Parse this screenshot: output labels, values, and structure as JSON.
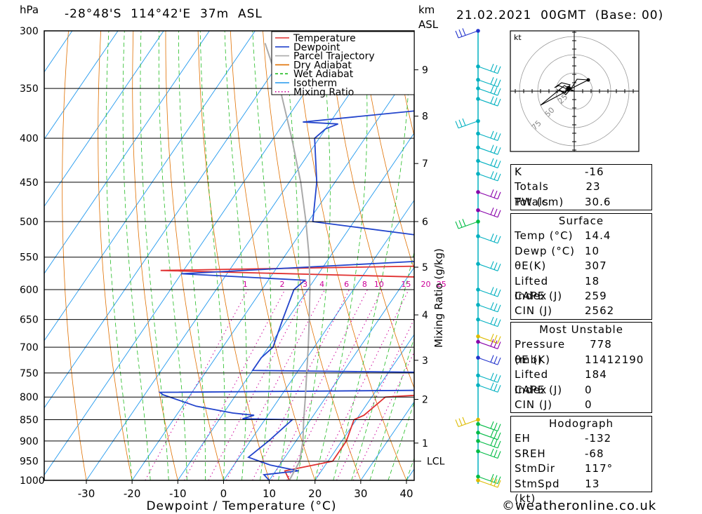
{
  "header": {
    "hpa_label": "hPa",
    "location": "-28°48'S  114°42'E  37m  ASL",
    "km_label": "km",
    "asl_label": "ASL",
    "run": "21.02.2021  00GMT  (Base: 00)"
  },
  "legend": [
    {
      "label": "Temperature",
      "color": "#e03030",
      "style": "solid"
    },
    {
      "label": "Dewpoint",
      "color": "#2244cc",
      "style": "solid"
    },
    {
      "label": "Parcel Trajectory",
      "color": "#aaaaaa",
      "style": "solid"
    },
    {
      "label": "Dry Adiabat",
      "color": "#e07000",
      "style": "solid"
    },
    {
      "label": "Wet Adiabat",
      "color": "#22bb22",
      "style": "dashed"
    },
    {
      "label": "Isotherm",
      "color": "#2299ee",
      "style": "solid"
    },
    {
      "label": "Mixing Ratio",
      "color": "#cc0099",
      "style": "dotted"
    }
  ],
  "chart_data": {
    "type": "line",
    "title": "",
    "xlabel": "Dewpoint / Temperature (°C)",
    "ylabel": "hPa",
    "secondary_ylabel": "km ASL",
    "mixing_ratio_label": "Mixing Ratio (g/kg)",
    "x_ticks": [
      -30,
      -20,
      -10,
      0,
      10,
      20,
      30,
      40
    ],
    "pressure_ticks": [
      300,
      350,
      400,
      450,
      500,
      550,
      600,
      650,
      700,
      750,
      800,
      850,
      900,
      950,
      1000
    ],
    "km_ticks": [
      {
        "label": "9",
        "p": 333
      },
      {
        "label": "8",
        "p": 377
      },
      {
        "label": "7",
        "p": 428
      },
      {
        "label": "6",
        "p": 500
      },
      {
        "label": "5",
        "p": 565
      },
      {
        "label": "4",
        "p": 642
      },
      {
        "label": "3",
        "p": 725
      },
      {
        "label": "2",
        "p": 805
      },
      {
        "label": "1",
        "p": 905
      }
    ],
    "lcl": {
      "label": "LCL",
      "p": 950
    },
    "mixing_ratio_lines": [
      "1",
      "2",
      "3",
      "4",
      "6",
      "8",
      "10",
      "15",
      "20",
      "25"
    ],
    "xlim": [
      -40,
      40
    ],
    "plim": [
      1000,
      300
    ],
    "skew": "skew-T log-p",
    "series": [
      {
        "name": "Temperature",
        "color": "#e03030",
        "points": [
          [
            1000,
            14.4
          ],
          [
            975,
            12
          ],
          [
            950,
            21
          ],
          [
            900,
            21
          ],
          [
            850,
            19.5
          ],
          [
            840,
            21
          ],
          [
            800,
            23
          ],
          [
            790,
            40
          ],
          [
            745,
            40
          ],
          [
            735,
            25
          ],
          [
            700,
            25
          ],
          [
            650,
            23
          ],
          [
            610,
            22
          ],
          [
            600,
            22.5
          ],
          [
            585,
            40
          ],
          [
            570,
            -45
          ],
          [
            560,
            40
          ],
          [
            540,
            40
          ],
          [
            500,
            17
          ],
          [
            450,
            16
          ],
          [
            400,
            12
          ],
          [
            385,
            10
          ],
          [
            383,
            40
          ],
          [
            380,
            40
          ],
          [
            360,
            40
          ],
          [
            340,
            40
          ]
        ]
      },
      {
        "name": "Dewpoint",
        "color": "#2244cc",
        "points": [
          [
            1000,
            10
          ],
          [
            985,
            8
          ],
          [
            975,
            15
          ],
          [
            960,
            8
          ],
          [
            940,
            2
          ],
          [
            900,
            4
          ],
          [
            850,
            6
          ],
          [
            848,
            -5
          ],
          [
            840,
            -3
          ],
          [
            835,
            -8
          ],
          [
            820,
            -17
          ],
          [
            795,
            -26
          ],
          [
            790,
            -27
          ],
          [
            785,
            40
          ],
          [
            760,
            40
          ],
          [
            750,
            40
          ],
          [
            745,
            -10
          ],
          [
            720,
            -10
          ],
          [
            700,
            -9
          ],
          [
            650,
            -11
          ],
          [
            600,
            -13
          ],
          [
            585,
            -12
          ],
          [
            575,
            -40
          ],
          [
            545,
            40
          ],
          [
            500,
            -19
          ],
          [
            450,
            -24
          ],
          [
            400,
            -31
          ],
          [
            390,
            -30
          ],
          [
            385,
            -28
          ],
          [
            383,
            -36
          ],
          [
            350,
            33
          ],
          [
            330,
            -34
          ],
          [
            300,
            -3
          ]
        ]
      },
      {
        "name": "Parcel Trajectory",
        "color": "#aaaaaa",
        "points": [
          [
            1000,
            14.4
          ],
          [
            950,
            13.8
          ],
          [
            900,
            11.5
          ],
          [
            850,
            8.5
          ],
          [
            800,
            5.5
          ],
          [
            750,
            2.2
          ],
          [
            700,
            -1.3
          ],
          [
            650,
            -5.2
          ],
          [
            600,
            -9.5
          ],
          [
            550,
            -14.5
          ],
          [
            500,
            -20.5
          ],
          [
            450,
            -27.5
          ],
          [
            400,
            -36
          ],
          [
            350,
            -46
          ],
          [
            310,
            -56
          ]
        ]
      }
    ]
  },
  "indices": {
    "K": "-16",
    "Totals Totals": "23",
    "PW (cm)": "30.6"
  },
  "surface": {
    "title": "Surface",
    "rows": [
      {
        "label": "Temp (°C)",
        "value": "14.4"
      },
      {
        "label": "Dewp (°C)",
        "value": "10"
      },
      {
        "label": "θE(K)",
        "value": "307"
      },
      {
        "label": "Lifted Index",
        "value": "18"
      },
      {
        "label": "CAPE (J)",
        "value": "259"
      },
      {
        "label": "CIN (J)",
        "value": "2562"
      }
    ]
  },
  "most_unstable": {
    "title": "Most Unstable",
    "rows": [
      {
        "label": "Pressure (mb)",
        "value": "778"
      },
      {
        "label": "θE (K)",
        "value": "11412190"
      },
      {
        "label": "Lifted Index",
        "value": "184"
      },
      {
        "label": "CAPE (J)",
        "value": "0"
      },
      {
        "label": "CIN (J)",
        "value": "0"
      }
    ]
  },
  "hodograph": {
    "title": "Hodograph",
    "unit": "kt",
    "ring_labels": [
      "25",
      "50",
      "75"
    ],
    "rows": [
      {
        "label": "EH",
        "value": "-132"
      },
      {
        "label": "SREH",
        "value": "-68"
      },
      {
        "label": "StmDir",
        "value": "117°"
      },
      {
        "label": "StmSpd (kt)",
        "value": "13"
      }
    ]
  },
  "footer": {
    "copyright": "©weatheronline.co.uk"
  },
  "colors": {
    "cyan_barbs": "#00b0c0",
    "purple_barbs": "#8800aa",
    "green_barbs": "#00bb44",
    "yellow_barbs": "#ddbb00",
    "blue_barbs": "#2233cc"
  }
}
